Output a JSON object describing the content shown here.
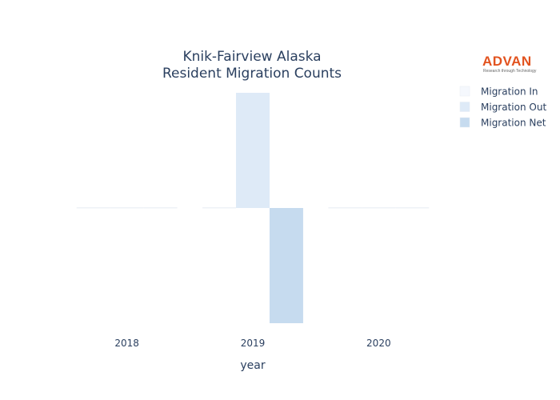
{
  "logo": {
    "word": "ADVAN",
    "tagline": "Research through Technology"
  },
  "chart_data": {
    "type": "bar",
    "title": [
      "Knik-Fairview Alaska",
      "Resident Migration Counts"
    ],
    "xlabel": "year",
    "ylabel": "",
    "categories": [
      "2018",
      "2019",
      "2020"
    ],
    "series": [
      {
        "name": "Migration In",
        "color": "#f5f8fd",
        "values": [
          0,
          0,
          0
        ]
      },
      {
        "name": "Migration Out",
        "color": "#deeaf7",
        "values": [
          0,
          1,
          0
        ]
      },
      {
        "name": "Migration Net",
        "color": "#c6dbef",
        "values": [
          0,
          -1,
          0
        ]
      }
    ],
    "ylim": [
      -1,
      1
    ],
    "grid": false,
    "legend_position": "top-right"
  }
}
